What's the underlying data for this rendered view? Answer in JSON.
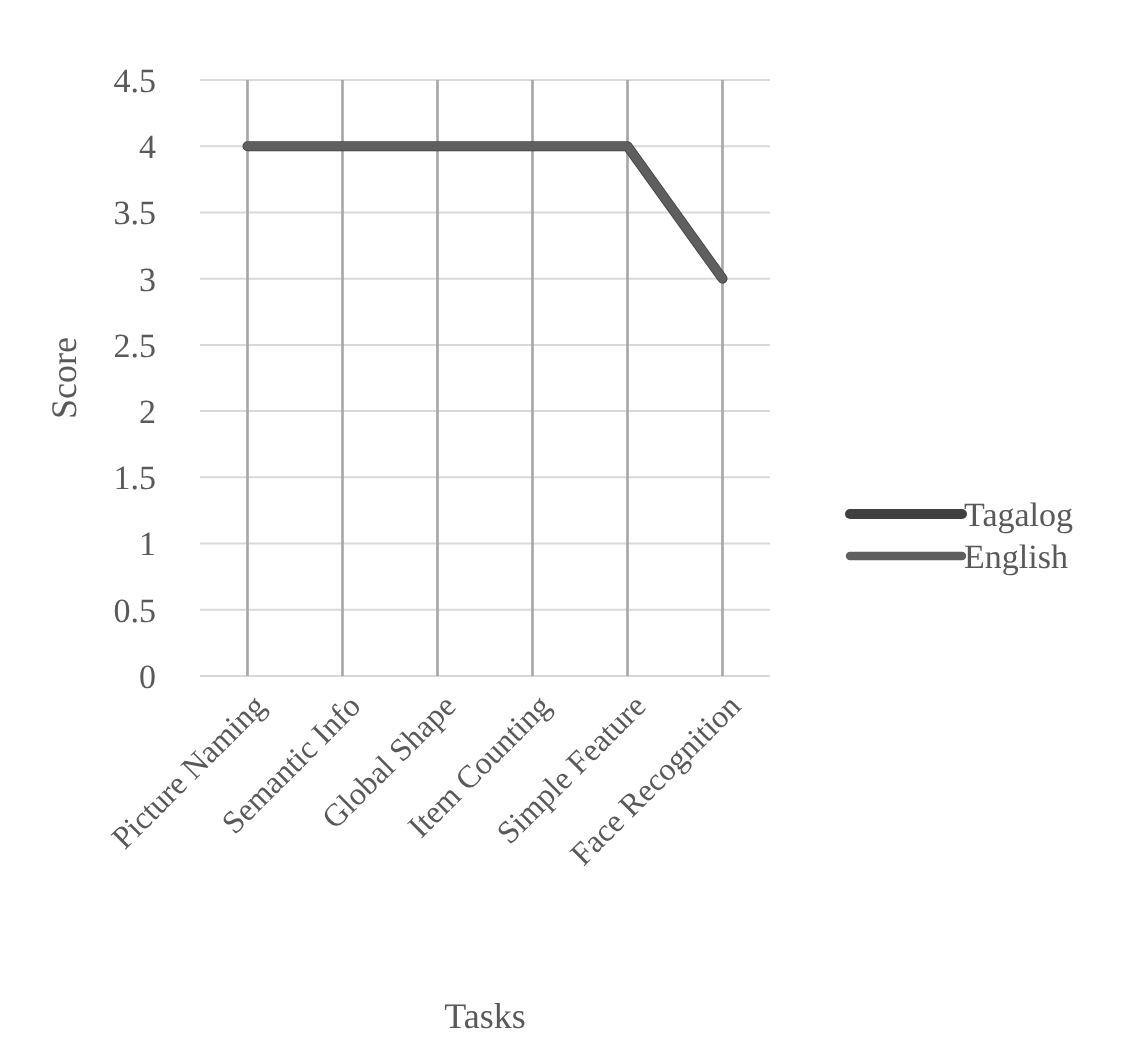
{
  "chart_data": {
    "type": "line",
    "xlabel": "Tasks",
    "ylabel": "Score",
    "categories": [
      "Picture Naming",
      "Semantic Info",
      "Global Shape",
      "Item Counting",
      "Simple Feature",
      "Face Recognition"
    ],
    "series": [
      {
        "name": "Tagalog",
        "color": "#404040",
        "values": [
          4,
          4,
          4,
          4,
          4,
          3
        ]
      },
      {
        "name": "English",
        "color": "#5f5f5f",
        "values": [
          4,
          4,
          4,
          4,
          4,
          3
        ]
      }
    ],
    "ylim": [
      0,
      4.5
    ],
    "yticks": [
      0,
      0.5,
      1,
      1.5,
      2,
      2.5,
      3,
      3.5,
      4,
      4.5
    ],
    "grid": true,
    "legend": "right",
    "marker": "none",
    "line_style": "solid"
  }
}
